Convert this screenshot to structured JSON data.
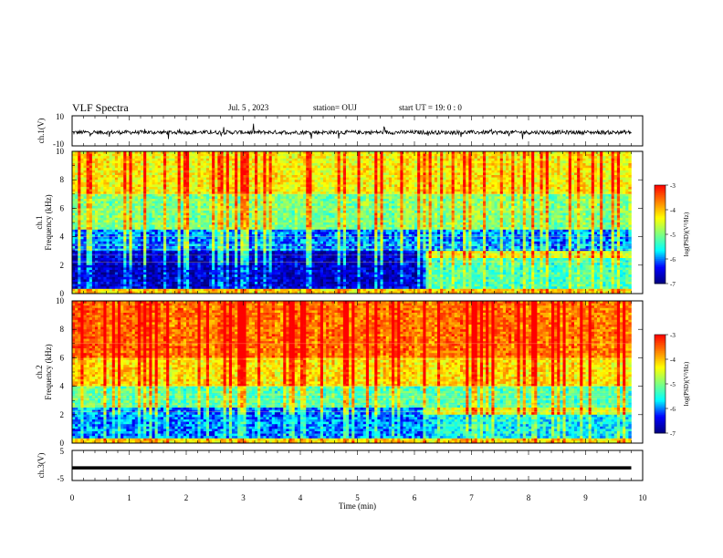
{
  "header": {
    "title": "VLF Spectra",
    "date": "Jul. 5 , 2023",
    "station": "station= OUJ",
    "start_ut": "start UT = 19: 0 : 0"
  },
  "chart_data": [
    {
      "type": "line",
      "name": "ch1-waveform",
      "ylabel": "ch.1(V)",
      "xlim": [
        0,
        10
      ],
      "ylim": [
        -10,
        10
      ],
      "yticks": [
        "10",
        "-10"
      ],
      "trace": "dense noisy waveform, center ~ -1 V, amplitude ~ ±2 V with occasional spikes",
      "x_extent_min": [
        0,
        9.8
      ]
    },
    {
      "type": "heatmap",
      "name": "ch1-spectrogram",
      "ylabel": "ch.1\nFrequency (kHz)",
      "ylabel_lines": [
        "ch.1",
        "Frequency (kHz)"
      ],
      "xlim": [
        0,
        10
      ],
      "ylim": [
        0,
        10
      ],
      "yticks": [
        0,
        2,
        4,
        6,
        8,
        10
      ],
      "colorbar": {
        "label": "log(PSD)(V²/Hz)",
        "range": [
          -7,
          -3
        ],
        "ticks": [
          "-3",
          "-4",
          "-5",
          "-6",
          "-7"
        ]
      },
      "bands": [
        {
          "from_kHz": 0.3,
          "to_kHz": 3.0,
          "t_from": 0,
          "t_to": 6.2,
          "level": -6.6
        },
        {
          "from_kHz": 3.0,
          "to_kHz": 4.5,
          "t_from": 0,
          "t_to": 9.8,
          "level": -6.0
        },
        {
          "from_kHz": 0.3,
          "to_kHz": 2.5,
          "t_from": 6.2,
          "t_to": 9.8,
          "level": -5.3
        },
        {
          "from_kHz": 4.5,
          "to_kHz": 7.0,
          "t_from": 0,
          "t_to": 9.8,
          "level": -5.0
        },
        {
          "from_kHz": 7.0,
          "to_kHz": 10.0,
          "t_from": 0,
          "t_to": 9.8,
          "level": -4.3
        }
      ]
    },
    {
      "type": "heatmap",
      "name": "ch2-spectrogram",
      "ylabel_lines": [
        "ch.2",
        "Frequency (kHz)"
      ],
      "xlim": [
        0,
        10
      ],
      "ylim": [
        0,
        10
      ],
      "yticks": [
        0,
        2,
        4,
        6,
        8,
        10
      ],
      "colorbar": {
        "label": "log(PSD)(V²/Hz)",
        "range": [
          -7,
          -3
        ],
        "ticks": [
          "-3",
          "-4",
          "-5",
          "-6",
          "-7"
        ]
      },
      "bands": [
        {
          "from_kHz": 0.3,
          "to_kHz": 2.5,
          "t_from": 0,
          "t_to": 6.2,
          "level": -6.0
        },
        {
          "from_kHz": 2.5,
          "to_kHz": 4.0,
          "t_from": 0,
          "t_to": 9.8,
          "level": -5.2
        },
        {
          "from_kHz": 0.3,
          "to_kHz": 2.0,
          "t_from": 6.2,
          "t_to": 9.8,
          "level": -5.6
        },
        {
          "from_kHz": 4.0,
          "to_kHz": 6.0,
          "t_from": 0,
          "t_to": 9.8,
          "level": -4.2
        },
        {
          "from_kHz": 6.0,
          "to_kHz": 10.0,
          "t_from": 0,
          "t_to": 9.8,
          "level": -3.6
        }
      ]
    },
    {
      "type": "line",
      "name": "ch3-waveform",
      "ylabel": "ch.3(V)",
      "xlim": [
        0,
        10
      ],
      "ylim": [
        -5,
        5
      ],
      "yticks": [
        "5",
        "-5"
      ],
      "value_V": -0.8,
      "x_extent_min": [
        0,
        9.8
      ]
    }
  ],
  "xaxis": {
    "label": "Time (min)",
    "ticks": [
      "0",
      "1",
      "2",
      "3",
      "4",
      "5",
      "6",
      "7",
      "8",
      "9",
      "10"
    ]
  },
  "colors": {
    "colormap": [
      "#00007f",
      "#0000ff",
      "#00ffff",
      "#7fff7f",
      "#ffff00",
      "#ff7f00",
      "#ff0000"
    ]
  }
}
